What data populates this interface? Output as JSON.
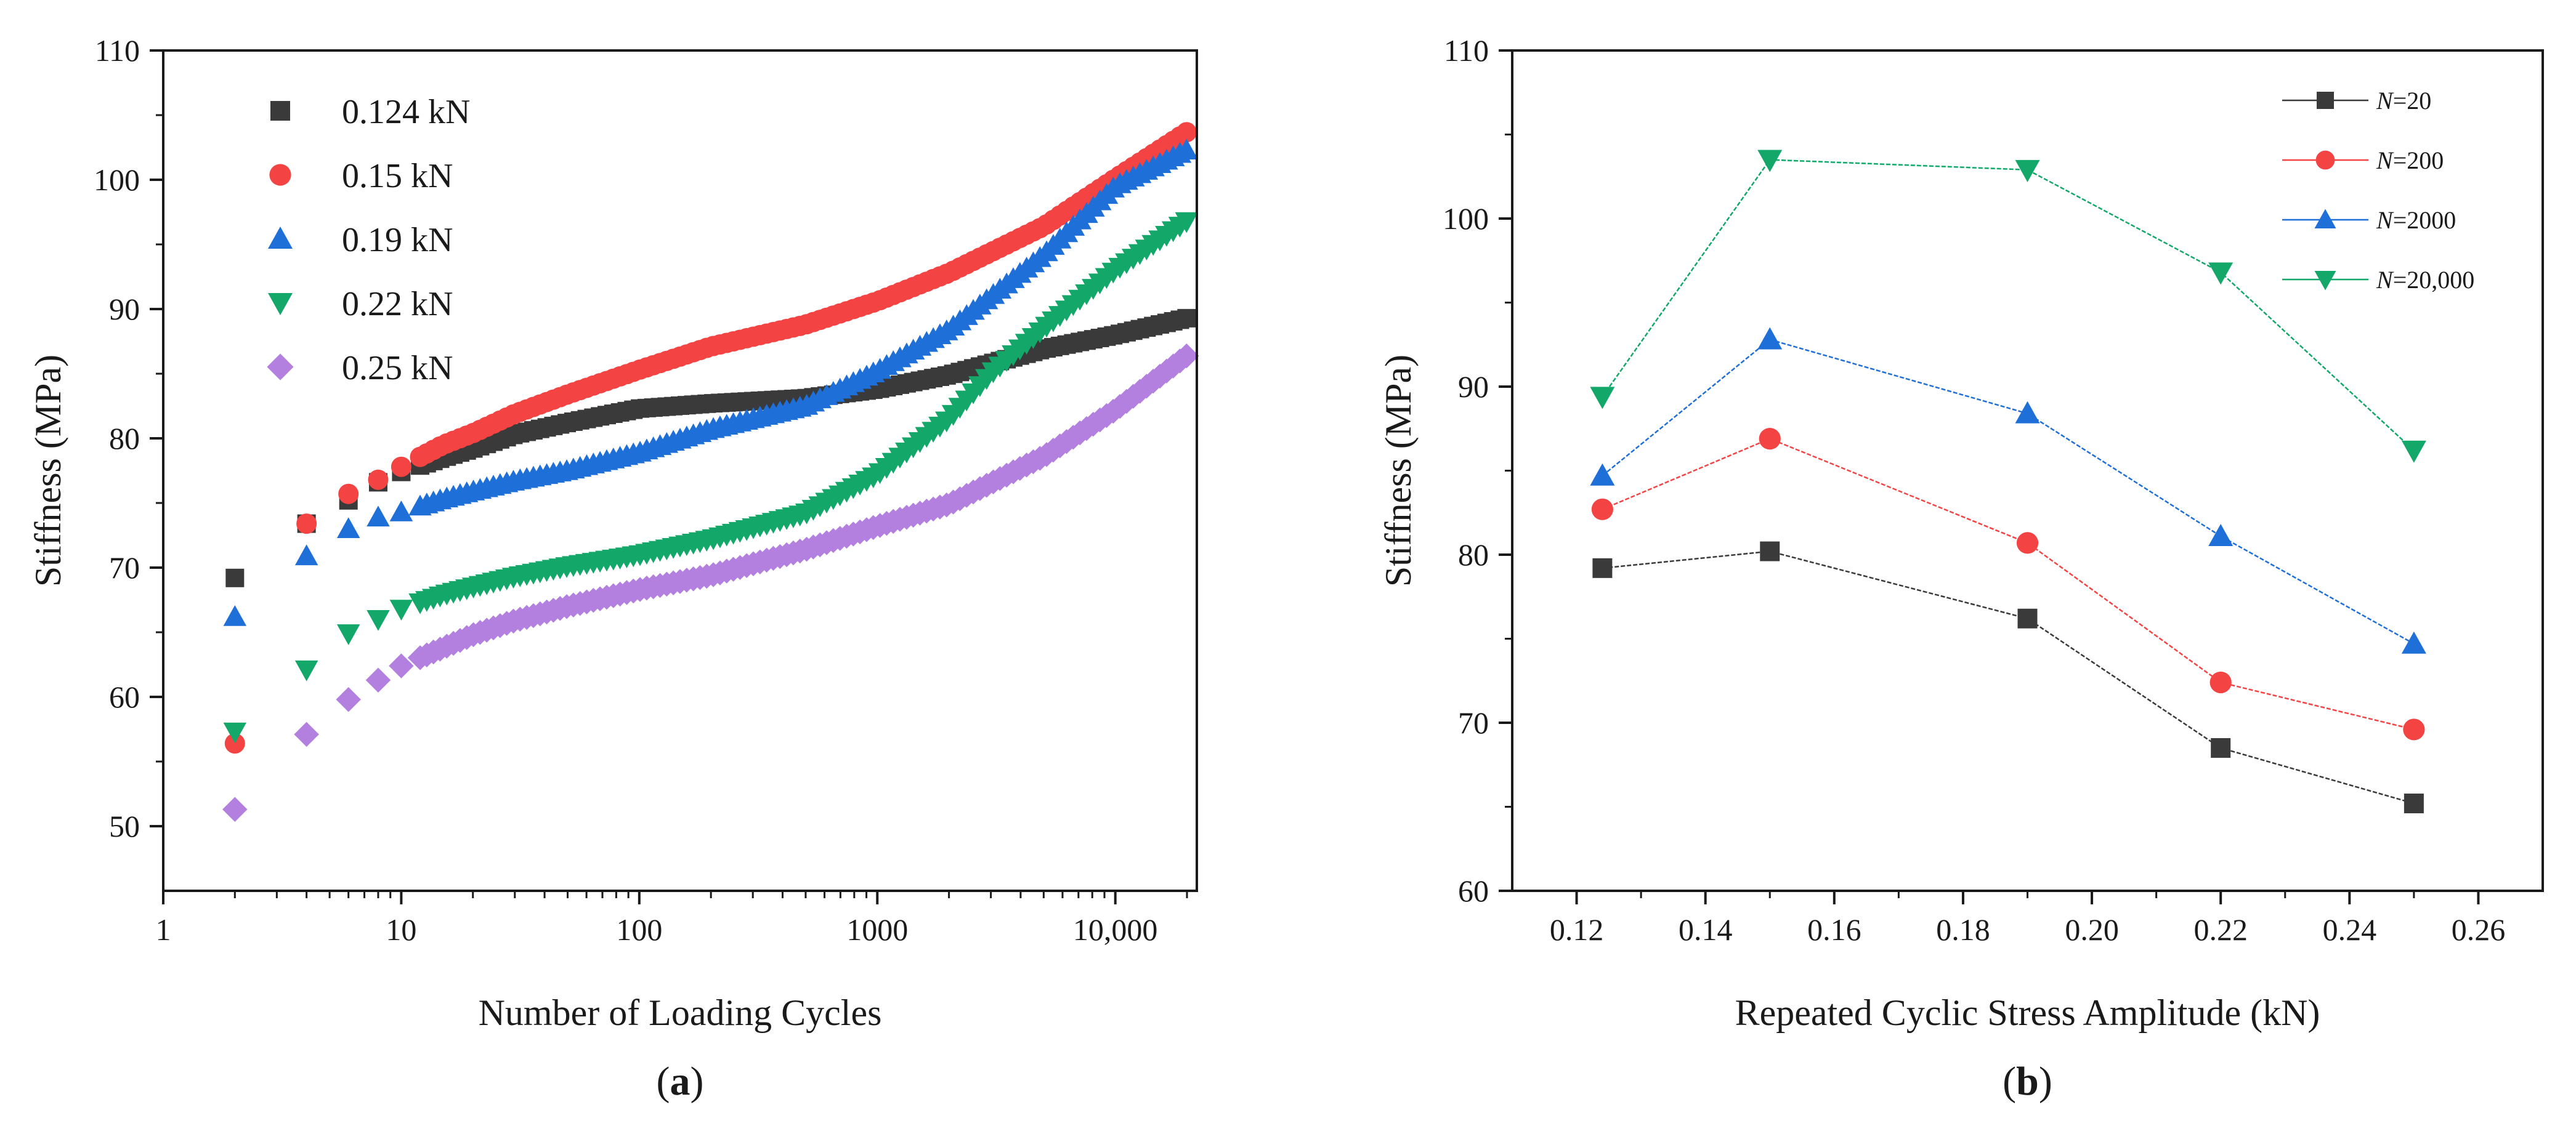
{
  "chart_data": [
    {
      "type": "scatter",
      "panel": "a",
      "xscale": "log",
      "xlabel": "Number of Loading Cycles",
      "ylabel": "Stiffness (MPa)",
      "xlim": [
        1,
        22000
      ],
      "ylim": [
        45,
        110
      ],
      "xticks": [
        1,
        10,
        100,
        1000,
        10000
      ],
      "xtick_labels": [
        "1",
        "10",
        "100",
        "1000",
        "10,000"
      ],
      "yticks": [
        50,
        60,
        70,
        80,
        90,
        100,
        110
      ],
      "ytick_labels": [
        "50",
        "60",
        "70",
        "80",
        "90",
        "100",
        "110"
      ],
      "legend_position": "top-left",
      "series": [
        {
          "name": "0.124 kN",
          "marker": "square",
          "color": "#3a3a3a",
          "anchors": [
            [
              2,
              69.2
            ],
            [
              4,
              73.4
            ],
            [
              6,
              75.2
            ],
            [
              8,
              76.6
            ],
            [
              10,
              77.4
            ],
            [
              15,
              78.5
            ],
            [
              20,
              79.2
            ],
            [
              30,
              80.3
            ],
            [
              50,
              81.2
            ],
            [
              100,
              82.3
            ],
            [
              200,
              82.7
            ],
            [
              500,
              83.1
            ],
            [
              1000,
              83.8
            ],
            [
              2000,
              84.9
            ],
            [
              5000,
              86.9
            ],
            [
              10000,
              88.0
            ],
            [
              20000,
              89.3
            ]
          ]
        },
        {
          "name": "0.15 kN",
          "marker": "circle",
          "color": "#f44343",
          "anchors": [
            [
              2,
              56.4
            ],
            [
              4,
              73.4
            ],
            [
              6,
              75.7
            ],
            [
              8,
              76.8
            ],
            [
              10,
              77.8
            ],
            [
              15,
              79.5
            ],
            [
              20,
              80.4
            ],
            [
              30,
              81.9
            ],
            [
              50,
              83.4
            ],
            [
              100,
              85.3
            ],
            [
              200,
              87.1
            ],
            [
              500,
              88.8
            ],
            [
              1000,
              90.6
            ],
            [
              2000,
              92.8
            ],
            [
              5000,
              96.4
            ],
            [
              10000,
              100.1
            ],
            [
              20000,
              103.7
            ]
          ]
        },
        {
          "name": "0.19 kN",
          "marker": "triangle-up",
          "color": "#1f6fd8",
          "anchors": [
            [
              2,
              66.2
            ],
            [
              4,
              70.9
            ],
            [
              6,
              73.0
            ],
            [
              8,
              73.9
            ],
            [
              10,
              74.3
            ],
            [
              15,
              75.3
            ],
            [
              20,
              75.9
            ],
            [
              30,
              76.7
            ],
            [
              50,
              77.5
            ],
            [
              100,
              78.9
            ],
            [
              200,
              80.7
            ],
            [
              500,
              82.5
            ],
            [
              1000,
              85.2
            ],
            [
              2000,
              88.4
            ],
            [
              5000,
              94.2
            ],
            [
              10000,
              99.5
            ],
            [
              20000,
              102.3
            ]
          ]
        },
        {
          "name": "0.22 kN",
          "marker": "triangle-down",
          "color": "#13a869",
          "anchors": [
            [
              2,
              57.3
            ],
            [
              4,
              62.1
            ],
            [
              6,
              64.9
            ],
            [
              8,
              66.0
            ],
            [
              10,
              66.8
            ],
            [
              15,
              67.9
            ],
            [
              20,
              68.5
            ],
            [
              30,
              69.3
            ],
            [
              50,
              70.1
            ],
            [
              100,
              71.0
            ],
            [
              200,
              72.2
            ],
            [
              500,
              74.2
            ],
            [
              1000,
              77.2
            ],
            [
              2000,
              81.5
            ],
            [
              3000,
              85.0
            ],
            [
              5000,
              88.5
            ],
            [
              10000,
              93.0
            ],
            [
              20000,
              96.8
            ]
          ]
        },
        {
          "name": "0.25 kN",
          "marker": "diamond",
          "color": "#b380e0",
          "anchors": [
            [
              2,
              51.3
            ],
            [
              4,
              57.1
            ],
            [
              6,
              59.8
            ],
            [
              8,
              61.3
            ],
            [
              10,
              62.4
            ],
            [
              15,
              63.8
            ],
            [
              20,
              64.8
            ],
            [
              30,
              65.9
            ],
            [
              50,
              67.0
            ],
            [
              100,
              68.3
            ],
            [
              200,
              69.4
            ],
            [
              500,
              71.4
            ],
            [
              1000,
              73.2
            ],
            [
              2000,
              74.9
            ],
            [
              5000,
              78.6
            ],
            [
              10000,
              82.2
            ],
            [
              20000,
              86.4
            ]
          ]
        }
      ]
    },
    {
      "type": "line",
      "panel": "b",
      "xlabel": "Repeated Cyclic Stress Amplitude (kN)",
      "ylabel": "Stiffness (MPa)",
      "xlim": [
        0.11,
        0.27
      ],
      "ylim": [
        60,
        110
      ],
      "xticks": [
        0.12,
        0.14,
        0.16,
        0.18,
        0.2,
        0.22,
        0.24,
        0.26
      ],
      "xtick_labels": [
        "0.12",
        "0.14",
        "0.16",
        "0.18",
        "0.20",
        "0.22",
        "0.24",
        "0.26"
      ],
      "yticks": [
        60,
        70,
        80,
        90,
        100,
        110
      ],
      "ytick_labels": [
        "60",
        "70",
        "80",
        "90",
        "100",
        "110"
      ],
      "legend_position": "top-right",
      "x": [
        0.124,
        0.15,
        0.19,
        0.22,
        0.25
      ],
      "series": [
        {
          "name_prefix": "N",
          "name_suffix": "=20",
          "marker": "square",
          "color": "#3a3a3a",
          "values": [
            79.2,
            80.2,
            76.2,
            68.5,
            65.2
          ]
        },
        {
          "name_prefix": "N",
          "name_suffix": "=200",
          "marker": "circle",
          "color": "#f44343",
          "values": [
            82.7,
            86.9,
            80.7,
            72.4,
            69.6
          ]
        },
        {
          "name_prefix": "N",
          "name_suffix": "=2000",
          "marker": "triangle-up",
          "color": "#1f6fd8",
          "values": [
            84.7,
            92.8,
            88.4,
            81.1,
            74.7
          ]
        },
        {
          "name_prefix": "N",
          "name_suffix": "=20,000",
          "marker": "triangle-down",
          "color": "#13a869",
          "values": [
            89.4,
            103.5,
            102.9,
            96.8,
            86.2
          ]
        }
      ]
    }
  ],
  "captions": {
    "a": {
      "open": "(",
      "letter": "a",
      "close": ")"
    },
    "b": {
      "open": "(",
      "letter": "b",
      "close": ")"
    }
  }
}
